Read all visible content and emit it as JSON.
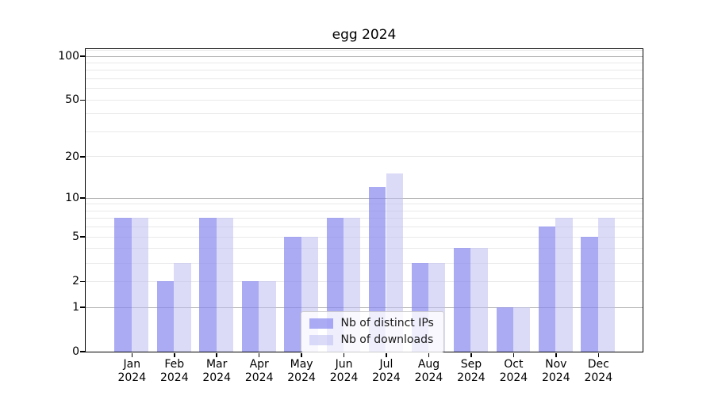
{
  "chart_data": {
    "type": "bar",
    "title": "egg 2024",
    "categories": [
      "Jan",
      "Feb",
      "Mar",
      "Apr",
      "May",
      "Jun",
      "Jul",
      "Aug",
      "Sep",
      "Oct",
      "Nov",
      "Dec"
    ],
    "x_tick_year": "2024",
    "series": [
      {
        "name": "Nb of distinct IPs",
        "fill": "rgba(136,136,240,0.70)",
        "solid": "#acacf5",
        "values": [
          7,
          2,
          7,
          2,
          5,
          7,
          12,
          3,
          4,
          1,
          6,
          5
        ]
      },
      {
        "name": "Nb of downloads",
        "fill": "rgba(190,190,243,0.55)",
        "solid": "#dbdbf9",
        "values": [
          7,
          3,
          7,
          2,
          5,
          7,
          15,
          3,
          4,
          1,
          7,
          7
        ]
      }
    ],
    "y_scale": "log1p",
    "ylim": [
      0,
      112
    ],
    "y_tick_labels": [
      0,
      1,
      2,
      5,
      10,
      20,
      50,
      100
    ],
    "y_major_grid": [
      1,
      10,
      100
    ],
    "y_light_grid": [
      2,
      3,
      4,
      5,
      6,
      7,
      8,
      9,
      20,
      30,
      40,
      50,
      60,
      70,
      80,
      90,
      110
    ],
    "grid": true,
    "grid_major_color": "#b0b0b0",
    "grid_minor_color": "#e9e9e9",
    "axis_color": "#000000",
    "legend": {
      "position": "lower-center"
    }
  }
}
